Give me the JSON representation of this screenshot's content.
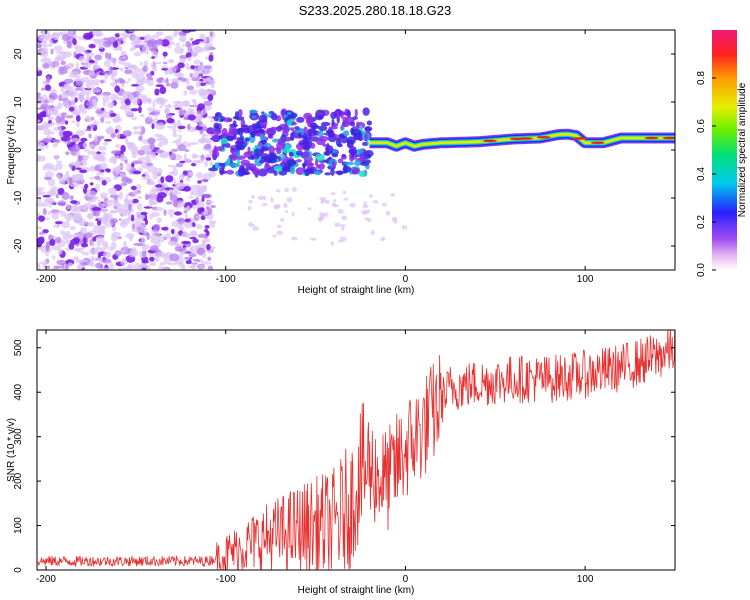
{
  "title": "S233.2025.280.18.18.G23",
  "chart_data": [
    {
      "type": "heatmap",
      "name": "spectrogram",
      "title": "S233.2025.280.18.18.G23",
      "xlabel": "Height of straight line (km)",
      "ylabel": "Frequency (Hz)",
      "xlim": [
        -205,
        150
      ],
      "ylim": [
        -25,
        25
      ],
      "xticks": [
        -200,
        -100,
        0,
        100
      ],
      "xtick_labels": [
        "-200",
        "-100",
        "0",
        "100"
      ],
      "yticks": [
        -20,
        -10,
        0,
        10,
        20
      ],
      "ytick_labels": [
        "-20",
        "-10",
        "0",
        "10",
        "20"
      ],
      "colorbar": {
        "label": "Normalized spectral amplitude",
        "range": [
          0,
          1
        ],
        "ticks": [
          0,
          0.2,
          0.4,
          0.6,
          0.8
        ],
        "tick_labels": [
          "0.0",
          "0.2",
          "0.4",
          "0.6",
          "0.8"
        ]
      },
      "noise_region": {
        "x_range": [
          -205,
          -107
        ],
        "note": "broadband noise over full frequency range"
      },
      "scatter_region": {
        "x_range": [
          -107,
          -20
        ],
        "freq_range": [
          -5,
          8
        ]
      },
      "ridge": {
        "x": [
          -20,
          -10,
          -5,
          0,
          5,
          10,
          20,
          40,
          60,
          75,
          85,
          90,
          95,
          100,
          110,
          120,
          150
        ],
        "freq": [
          1.5,
          1.5,
          0.8,
          1.5,
          0.8,
          1.2,
          1.5,
          1.7,
          2.3,
          2.5,
          3.2,
          3.3,
          3.0,
          1.5,
          1.5,
          2.5,
          2.5
        ]
      }
    },
    {
      "type": "line",
      "name": "snr",
      "xlabel": "Height of straight line (km)",
      "ylabel": "SNR (10 * v/v)",
      "xlim": [
        -205,
        150
      ],
      "ylim": [
        0,
        540
      ],
      "xticks": [
        -200,
        -100,
        0,
        100
      ],
      "xtick_labels": [
        "-200",
        "-100",
        "0",
        "100"
      ],
      "yticks": [
        0,
        100,
        200,
        300,
        400,
        500
      ],
      "ytick_labels": [
        "0",
        "100",
        "200",
        "300",
        "400",
        "500"
      ],
      "color": "#e8302f",
      "trend": {
        "x": [
          -205,
          -110,
          -100,
          -80,
          -60,
          -40,
          -30,
          -25,
          -20,
          -15,
          -10,
          0,
          10,
          20,
          25,
          40,
          60,
          80,
          100,
          120,
          140,
          150
        ],
        "y": [
          20,
          20,
          35,
          70,
          90,
          100,
          150,
          220,
          230,
          210,
          200,
          270,
          320,
          380,
          410,
          420,
          430,
          430,
          440,
          455,
          480,
          500
        ]
      }
    }
  ]
}
